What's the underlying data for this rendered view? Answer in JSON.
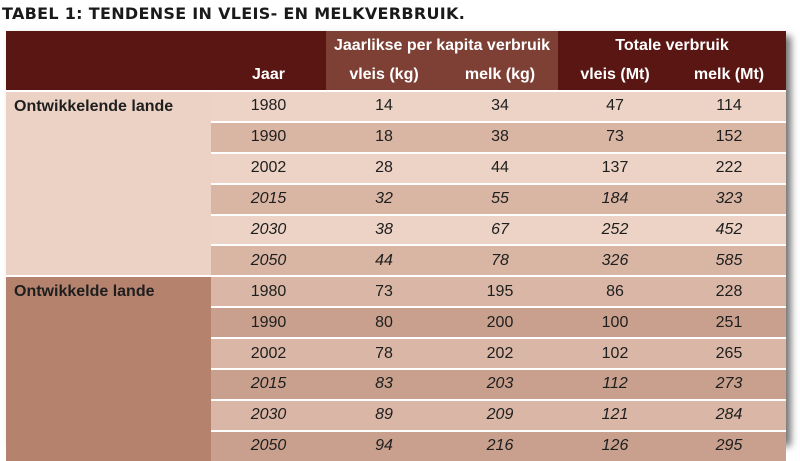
{
  "title": "TABEL 1: TENDENSE IN VLEIS- EN MELKVERBRUIK.",
  "header": {
    "group_per_capita": "Jaarlikse per kapita verbruik",
    "group_total": "Totale verbruik",
    "col_year": "Jaar",
    "col_meat_kg": "vleis (kg)",
    "col_milk_kg": "melk (kg)",
    "col_meat_mt": "vleis (Mt)",
    "col_milk_mt": "melk (Mt)"
  },
  "groups": [
    {
      "name": "Ontwikkelende lande",
      "rows": [
        {
          "year": "1980",
          "meat_kg": "14",
          "milk_kg": "34",
          "meat_mt": "47",
          "milk_mt": "114",
          "projected": false
        },
        {
          "year": "1990",
          "meat_kg": "18",
          "milk_kg": "38",
          "meat_mt": "73",
          "milk_mt": "152",
          "projected": false
        },
        {
          "year": "2002",
          "meat_kg": "28",
          "milk_kg": "44",
          "meat_mt": "137",
          "milk_mt": "222",
          "projected": false
        },
        {
          "year": "2015",
          "meat_kg": "32",
          "milk_kg": "55",
          "meat_mt": "184",
          "milk_mt": "323",
          "projected": true
        },
        {
          "year": "2030",
          "meat_kg": "38",
          "milk_kg": "67",
          "meat_mt": "252",
          "milk_mt": "452",
          "projected": true
        },
        {
          "year": "2050",
          "meat_kg": "44",
          "milk_kg": "78",
          "meat_mt": "326",
          "milk_mt": "585",
          "projected": true
        }
      ]
    },
    {
      "name": "Ontwikkelde lande",
      "rows": [
        {
          "year": "1980",
          "meat_kg": "73",
          "milk_kg": "195",
          "meat_mt": "86",
          "milk_mt": "228",
          "projected": false
        },
        {
          "year": "1990",
          "meat_kg": "80",
          "milk_kg": "200",
          "meat_mt": "100",
          "milk_mt": "251",
          "projected": false
        },
        {
          "year": "2002",
          "meat_kg": "78",
          "milk_kg": "202",
          "meat_mt": "102",
          "milk_mt": "265",
          "projected": false
        },
        {
          "year": "2015",
          "meat_kg": "83",
          "milk_kg": "203",
          "meat_mt": "112",
          "milk_mt": "273",
          "projected": true
        },
        {
          "year": "2030",
          "meat_kg": "89",
          "milk_kg": "209",
          "meat_mt": "121",
          "milk_mt": "284",
          "projected": true
        },
        {
          "year": "2050",
          "meat_kg": "94",
          "milk_kg": "216",
          "meat_mt": "126",
          "milk_mt": "295",
          "projected": true
        }
      ]
    }
  ],
  "colors": {
    "header_dark": "#5a1612",
    "header_sub": "#7e4035",
    "group1_label_bg": "#ebd2c5",
    "group2_label_bg": "#b5826d"
  }
}
